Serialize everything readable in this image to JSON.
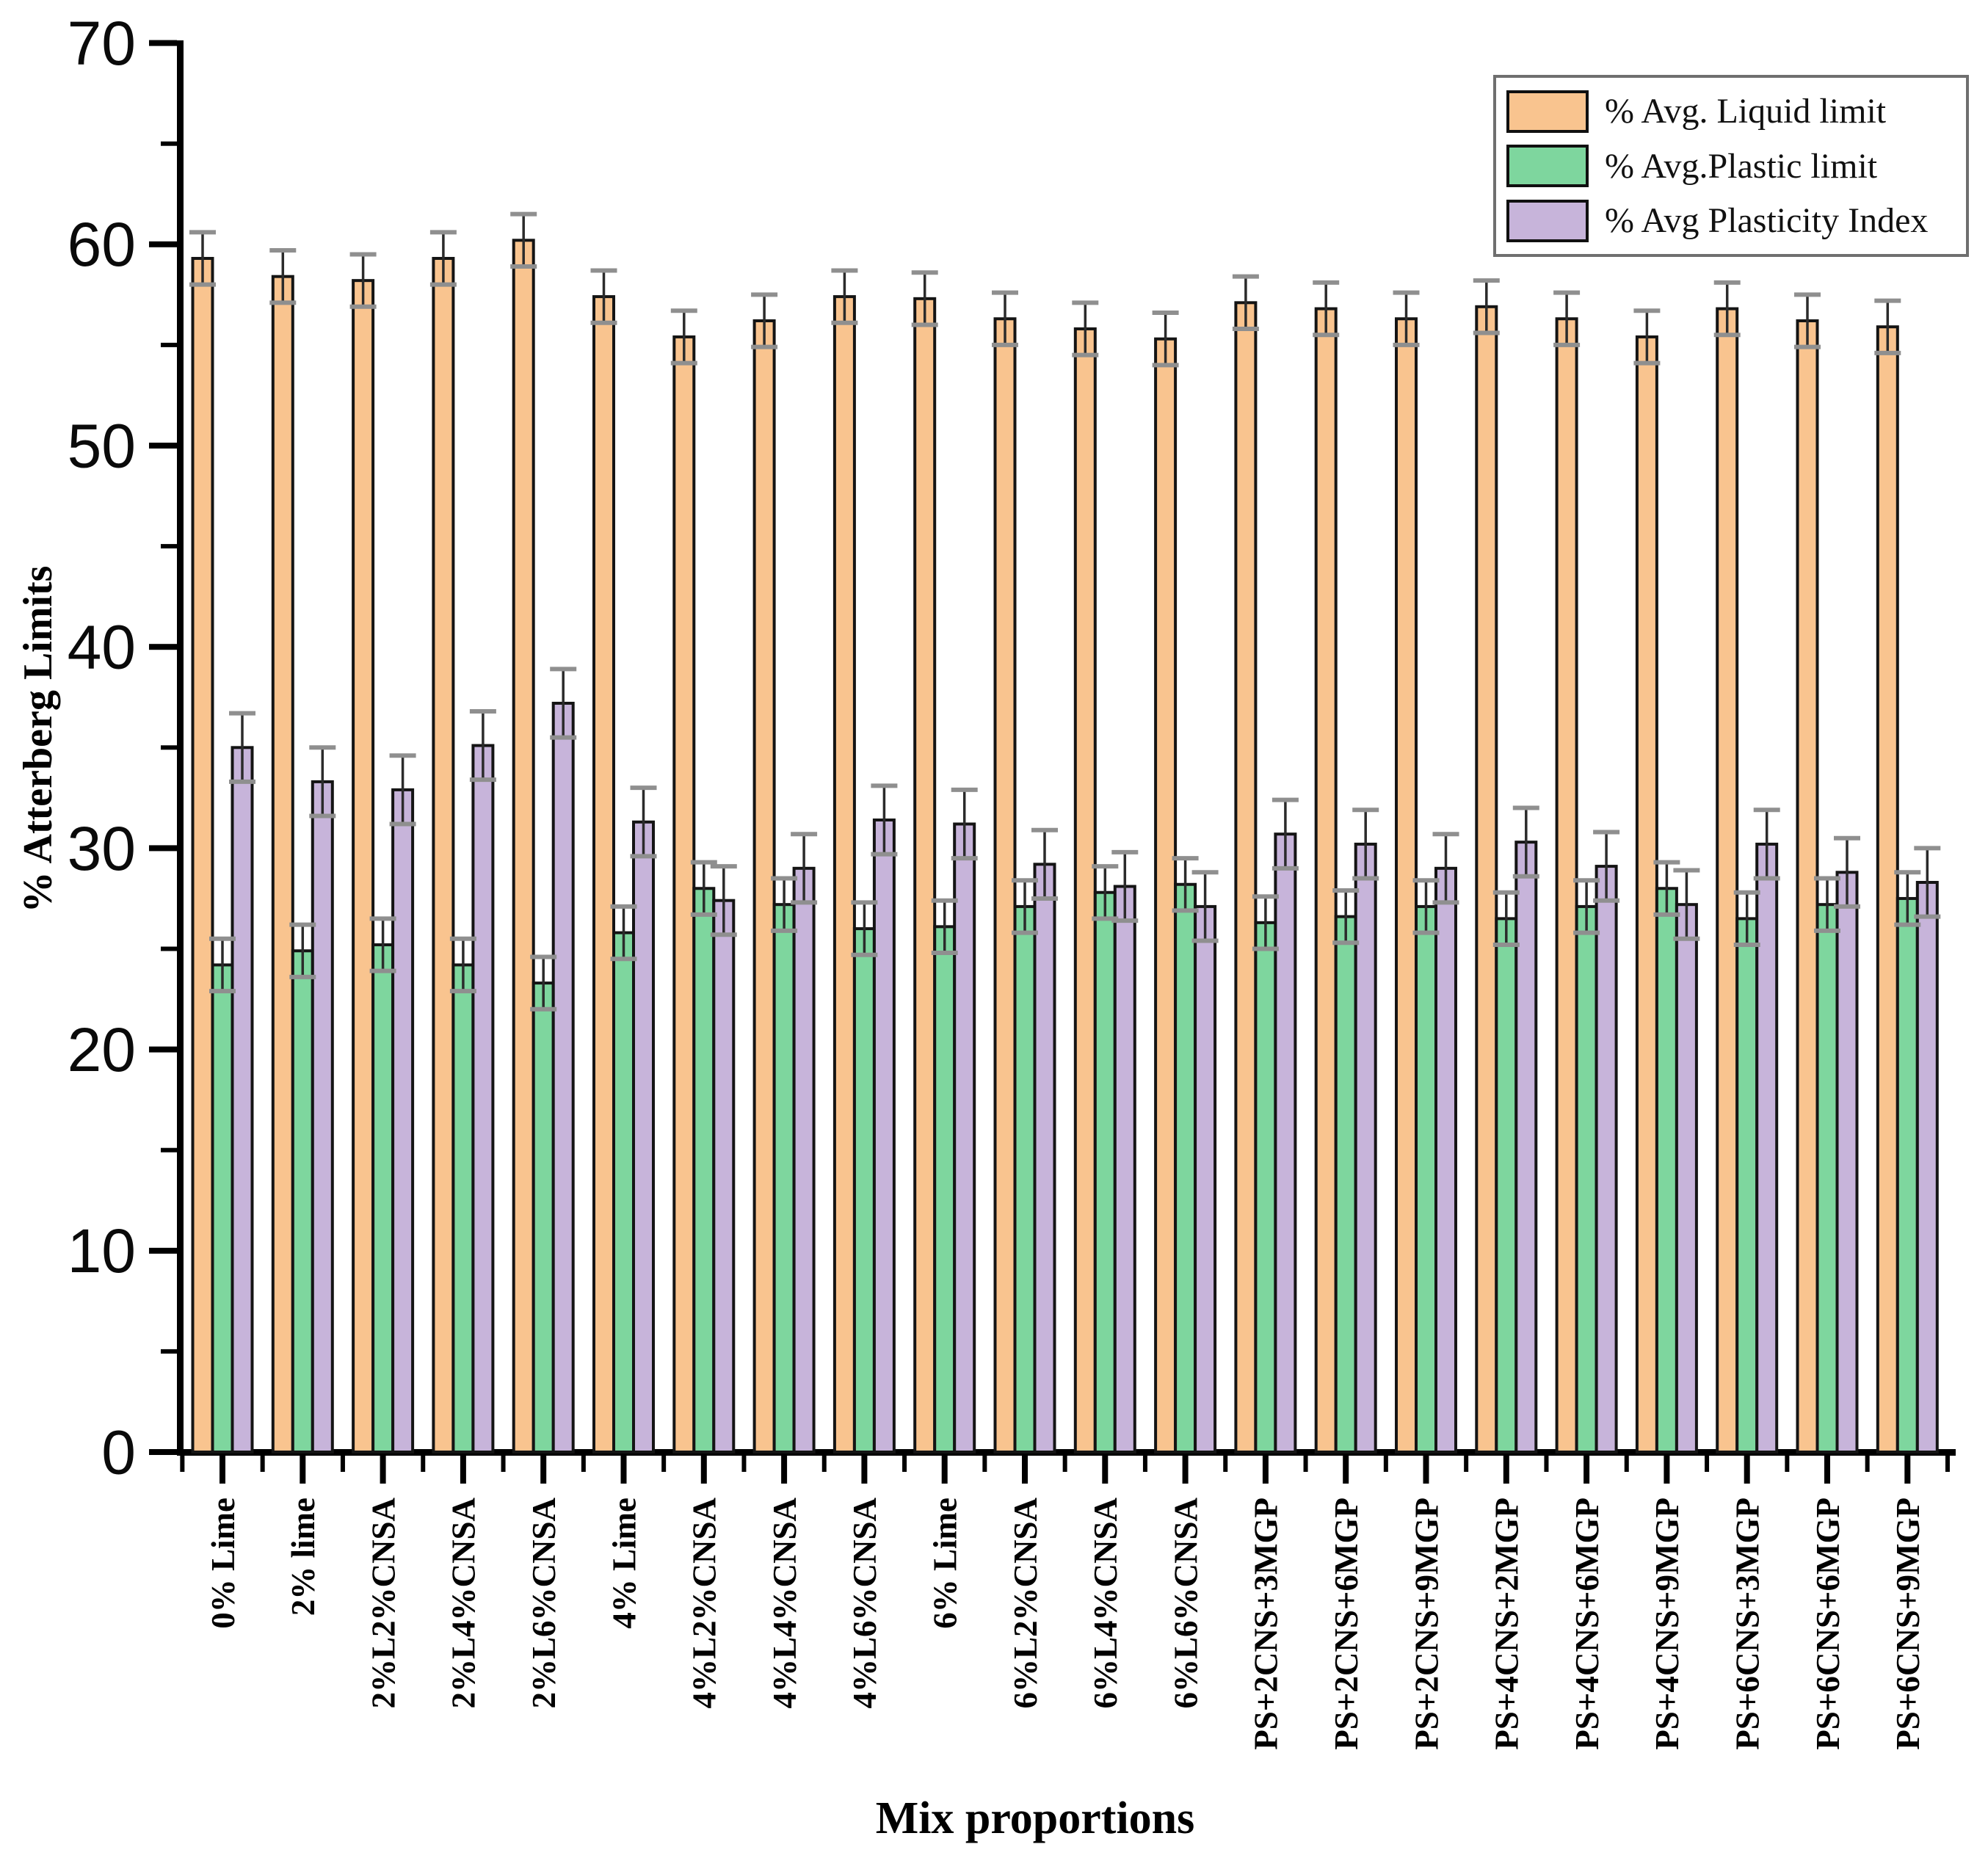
{
  "axes": {
    "y_label": "% Atterberg Limits",
    "x_label": "Mix proportions",
    "y_ticks": [
      0,
      10,
      20,
      30,
      40,
      50,
      60,
      70
    ],
    "y_minor_ticks": [
      5,
      15,
      25,
      35,
      45,
      55,
      65
    ],
    "ylim": [
      0,
      70
    ]
  },
  "legend": {
    "position": "top-right",
    "items": [
      {
        "label": "% Avg. Liquid limit",
        "color": "#F9C48F"
      },
      {
        "label": "% Avg.Plastic limit",
        "color": "#7ED69E"
      },
      {
        "label": "% Avg Plasticity Index",
        "color": "#C7B4DA"
      }
    ]
  },
  "chart_data": {
    "type": "bar",
    "title": "",
    "xlabel": "Mix proportions",
    "ylabel": "% Atterberg Limits",
    "ylim": [
      0,
      70
    ],
    "grid": false,
    "error_bars": true,
    "categories": [
      "0% Lime",
      "2% lime",
      "2%L2%CNSA",
      "2%L4%CNSA",
      "2%L6%CNSA",
      "4% Lime",
      "4%L2%CNSA",
      "4%L4%CNSA",
      "4%L6%CNSA",
      "6% Lime",
      "6%L2%CNSA",
      "6%L4%CNSA",
      "6%L6%CNSA",
      "PS+2CNS+3MGP",
      "PS+2CNS+6MGP",
      "PS+2CNS+9MGP",
      "PS+4CNS+2MGP",
      "PS+4CNS+6MGP",
      "PS+4CNS+9MGP",
      "PS+6CNS+3MGP",
      "PS+6CNS+6MGP",
      "PS+6CNS+9MGP"
    ],
    "series": [
      {
        "name": "% Avg. Liquid limit",
        "color": "#F9C48F",
        "error": 1.3,
        "values": [
          59.3,
          58.4,
          58.2,
          59.3,
          60.2,
          57.4,
          55.4,
          56.2,
          57.4,
          57.3,
          56.3,
          55.8,
          55.3,
          57.1,
          56.8,
          56.3,
          56.9,
          56.3,
          55.4,
          56.8,
          56.2,
          55.9
        ]
      },
      {
        "name": "% Avg.Plastic limit",
        "color": "#7ED69E",
        "error": 1.3,
        "values": [
          24.2,
          24.9,
          25.2,
          24.2,
          23.3,
          25.8,
          28.0,
          27.2,
          26.0,
          26.1,
          27.1,
          27.8,
          28.2,
          26.3,
          26.6,
          27.1,
          26.5,
          27.1,
          28.0,
          26.5,
          27.2,
          27.5
        ]
      },
      {
        "name": "% Avg Plasticity Index",
        "color": "#C7B4DA",
        "error": 1.7,
        "values": [
          35.0,
          33.3,
          32.9,
          35.1,
          37.2,
          31.3,
          27.4,
          29.0,
          31.4,
          31.2,
          29.2,
          28.1,
          27.1,
          30.7,
          30.2,
          29.0,
          30.3,
          29.1,
          27.2,
          30.2,
          28.8,
          28.3
        ]
      }
    ]
  }
}
